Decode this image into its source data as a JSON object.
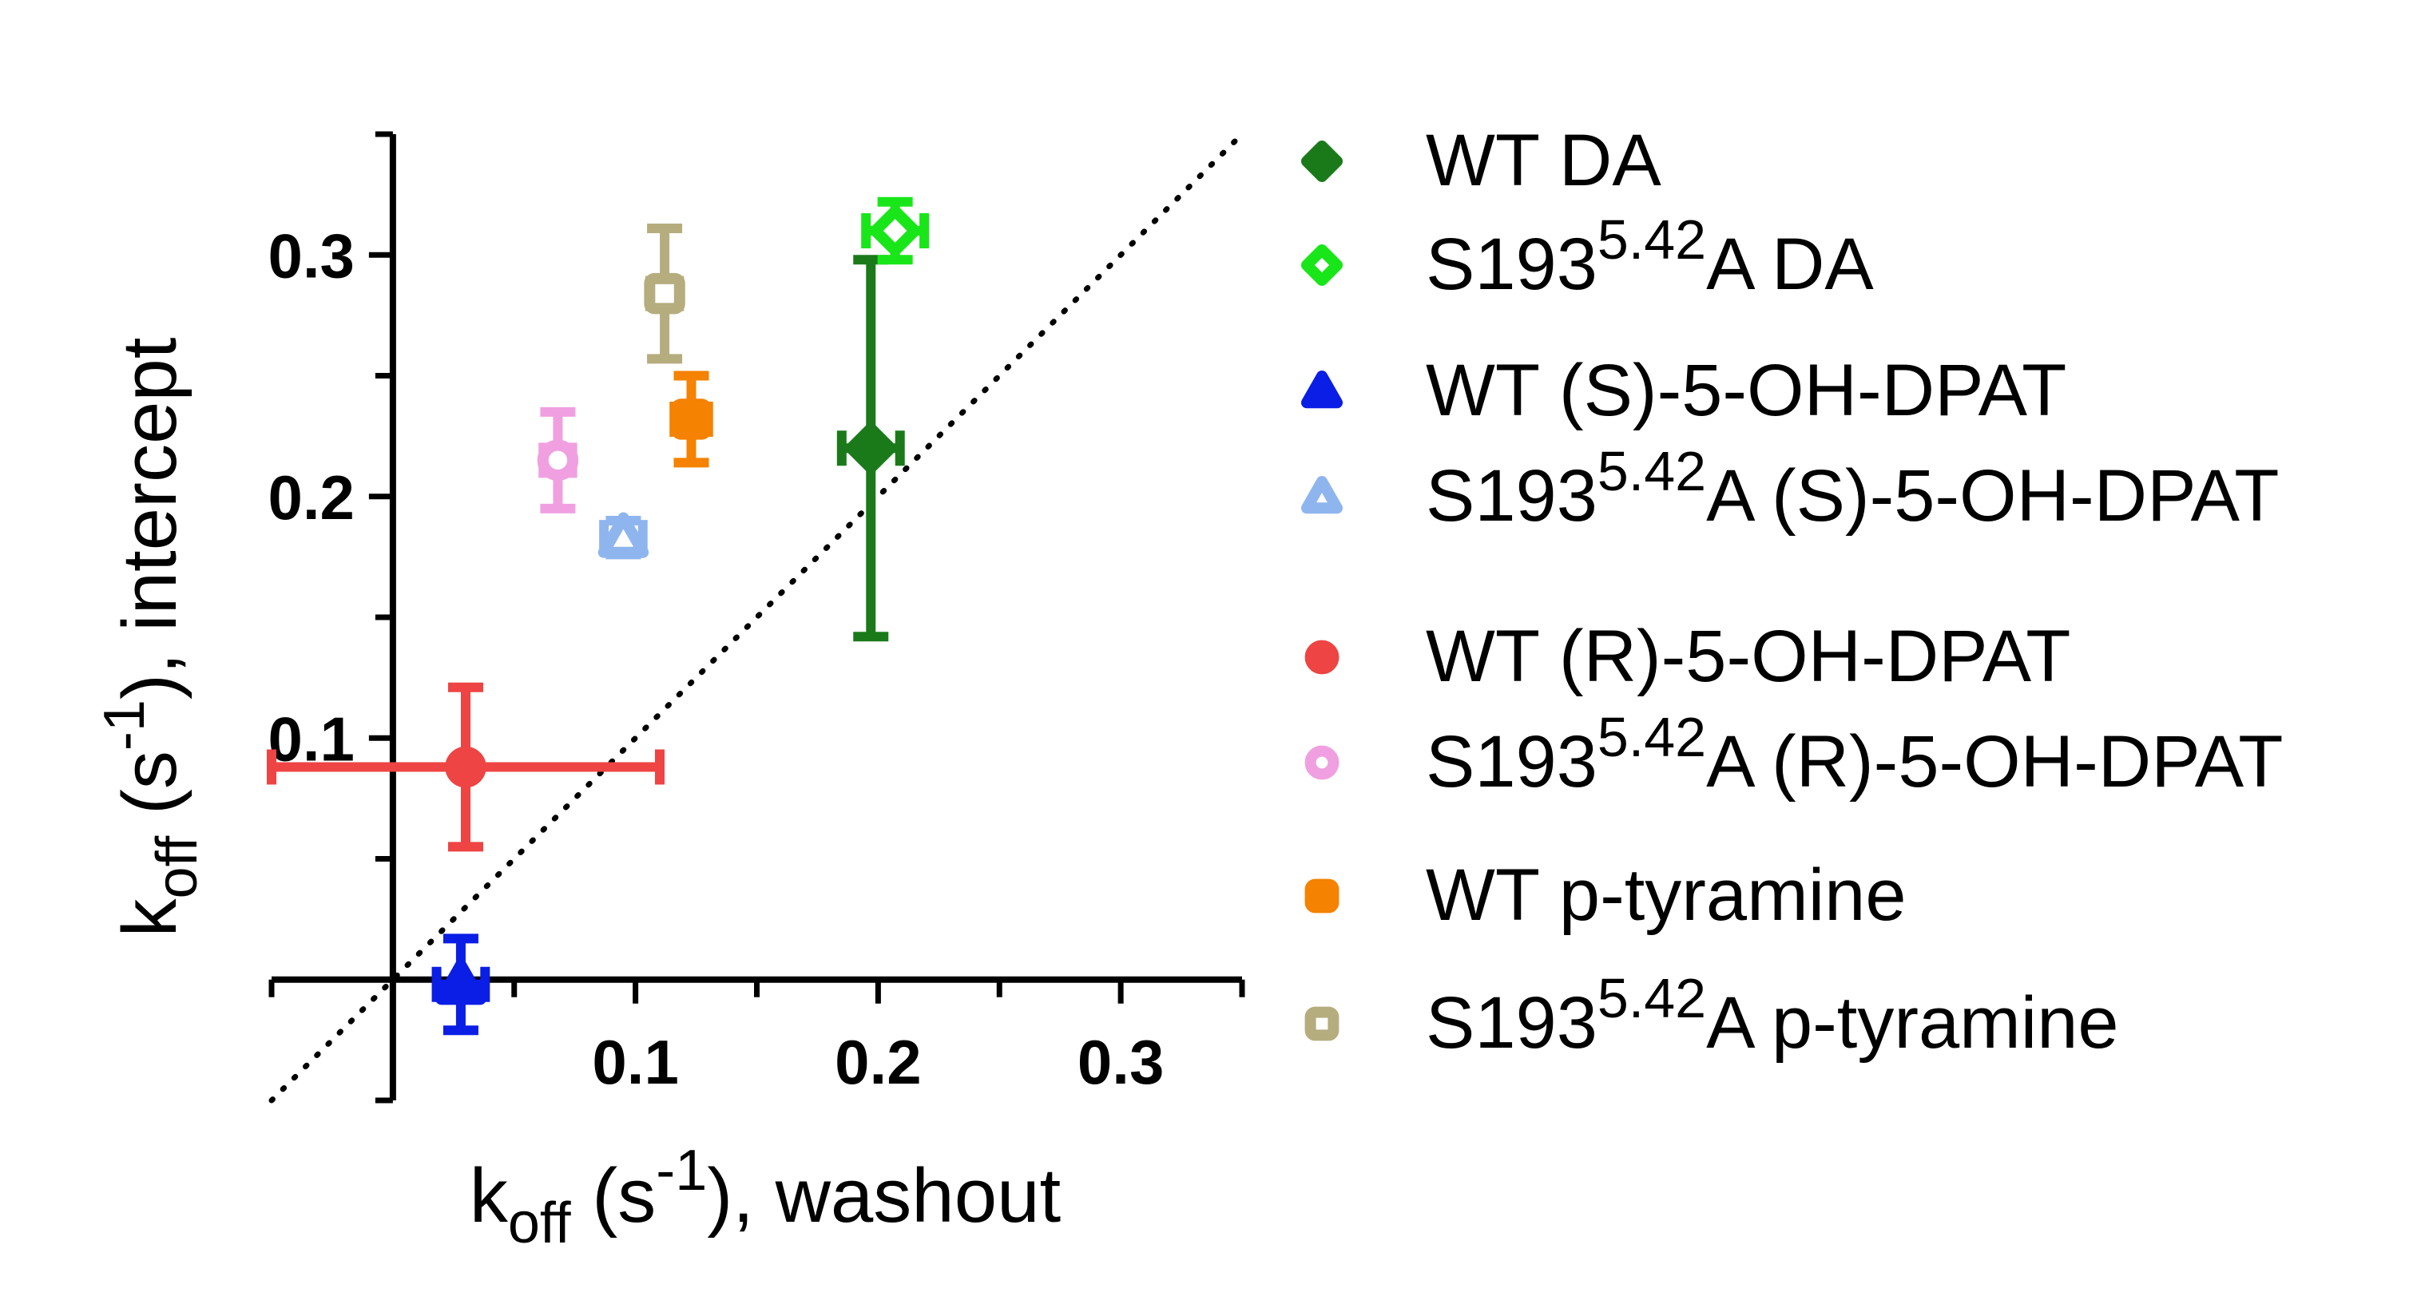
{
  "chart_data": {
    "type": "scatter",
    "xlabel": {
      "base": "k",
      "sub": "off",
      "pre": " (s",
      "sup": "-1",
      "post": "), washout"
    },
    "ylabel": {
      "base": "k",
      "sub": "off",
      "pre": " (s",
      "sup": "-1",
      "post": "), intercept"
    },
    "xlim": [
      -0.05,
      0.35
    ],
    "ylim": [
      -0.05,
      0.35
    ],
    "x_ticks": [
      0.1,
      0.2,
      0.3
    ],
    "x_tick_labels": [
      "0.1",
      "0.2",
      "0.3"
    ],
    "y_ticks": [
      0.1,
      0.2,
      0.3
    ],
    "y_tick_labels": [
      "0.1",
      "0.2",
      "0.3"
    ],
    "identity_line": true,
    "grid": false,
    "legend_position": "right",
    "series": [
      {
        "name": {
          "main": "WT DA"
        },
        "marker": "diamond",
        "filled": true,
        "color": "#1a7a1a",
        "x": 0.197,
        "y": 0.22,
        "xerr": 0.012,
        "yerr": 0.078
      },
      {
        "name": {
          "main": "S193",
          "sup": "5.42",
          "rest": "A DA"
        },
        "marker": "diamond",
        "filled": false,
        "color": "#19e619",
        "x": 0.207,
        "y": 0.31,
        "xerr": 0.012,
        "yerr": 0.012
      },
      {
        "name": {
          "main": "WT (S)-5-OH-DPAT"
        },
        "marker": "triangle",
        "filled": true,
        "color": "#0a1ee6",
        "x": 0.028,
        "y": -0.002,
        "xerr": 0.01,
        "yerr": 0.019
      },
      {
        "name": {
          "main": "S193",
          "sup": "5.42",
          "rest": "A (S)-5-OH-DPAT"
        },
        "marker": "triangle",
        "filled": false,
        "color": "#8fb5ee",
        "x": 0.095,
        "y": 0.183,
        "xerr": 0.008,
        "yerr": 0.007
      },
      {
        "name": {
          "main": "WT (R)-5-OH-DPAT"
        },
        "marker": "circle",
        "filled": true,
        "color": "#ee4444",
        "x": 0.03,
        "y": 0.088,
        "xerr": 0.08,
        "yerr": 0.033
      },
      {
        "name": {
          "main": "S193",
          "sup": "5.42",
          "rest": "A (R)-5-OH-DPAT"
        },
        "marker": "circle",
        "filled": false,
        "color": "#f0a0e0",
        "x": 0.068,
        "y": 0.215,
        "xerr": 0.006,
        "yerr": 0.02
      },
      {
        "name": {
          "main": "WT p-tyramine"
        },
        "marker": "square",
        "filled": true,
        "color": "#f58200",
        "x": 0.123,
        "y": 0.232,
        "xerr": 0.007,
        "yerr": 0.018
      },
      {
        "name": {
          "main": "S193",
          "sup": "5.42",
          "rest": "A p-tyramine"
        },
        "marker": "square",
        "filled": false,
        "color": "#b5ad7e",
        "x": 0.112,
        "y": 0.284,
        "xerr": 0.006,
        "yerr": 0.027
      }
    ]
  }
}
